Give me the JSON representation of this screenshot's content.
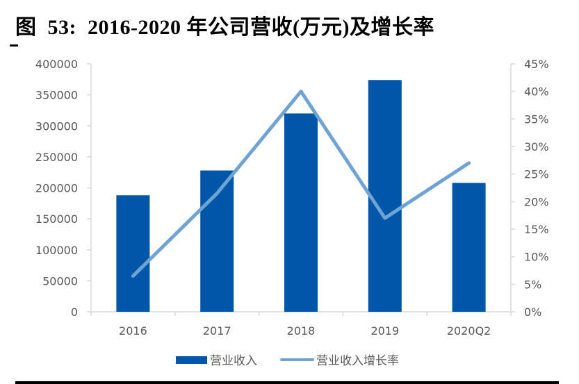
{
  "title": {
    "prefix": "图",
    "number": "53:",
    "text": "2016-2020 年公司营收(万元)及增长率"
  },
  "colors": {
    "bar": "#0057AA",
    "line": "#6FA3D3",
    "axis": "#D9D9D9",
    "tick_label": "#595959"
  },
  "chart_data": {
    "type": "bar+line",
    "title": "2016-2020 年公司营收(万元)及增长率",
    "categories": [
      "2016",
      "2017",
      "2018",
      "2019",
      "2020Q2"
    ],
    "series": [
      {
        "name": "营业收入",
        "type": "bar",
        "axis": "left",
        "values": [
          188000,
          228000,
          320000,
          374000,
          208000
        ]
      },
      {
        "name": "营业收入增长率",
        "type": "line",
        "axis": "right",
        "values": [
          6.5,
          21.5,
          40.0,
          17.0,
          27.0
        ],
        "unit": "%"
      }
    ],
    "left_axis": {
      "ticks": [
        "0",
        "50000",
        "100000",
        "150000",
        "200000",
        "250000",
        "300000",
        "350000",
        "400000"
      ],
      "ylim": [
        0,
        400000
      ]
    },
    "right_axis": {
      "ticks": [
        "0%",
        "5%",
        "10%",
        "15%",
        "20%",
        "25%",
        "30%",
        "35%",
        "40%",
        "45%"
      ],
      "ylim": [
        0,
        45
      ]
    },
    "xlabel": "",
    "ylabel": "",
    "grid": false,
    "legend_position": "bottom"
  },
  "legend": {
    "bar_label": "营业收入",
    "line_label": "营业收入增长率"
  }
}
